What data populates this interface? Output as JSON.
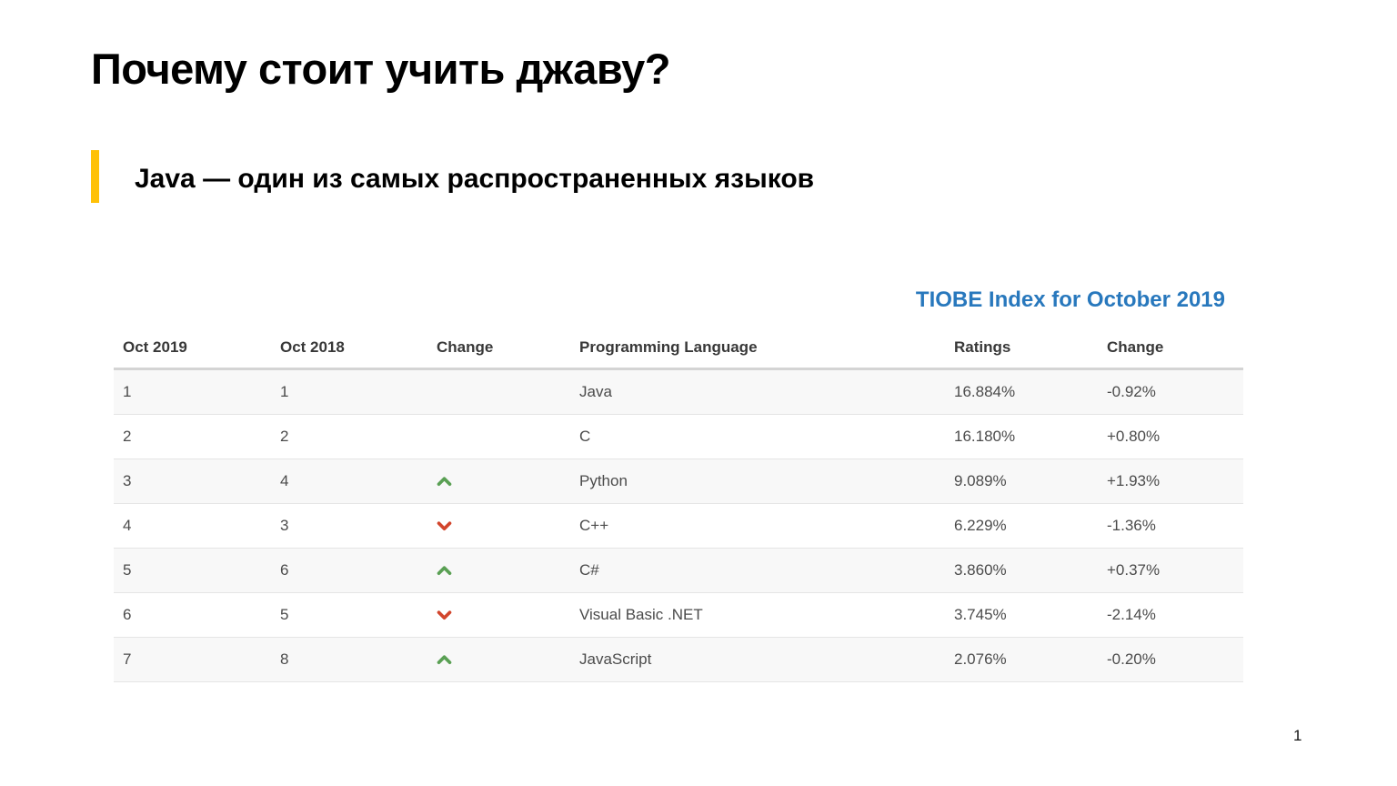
{
  "slide": {
    "title": "Почему стоит учить джаву?",
    "subtitle": "Java — один из самых распространенных языков",
    "page_number": "1"
  },
  "tiobe": {
    "title": "TIOBE Index for October 2019",
    "columns": {
      "oct2019": "Oct 2019",
      "oct2018": "Oct 2018",
      "change_arrow": "Change",
      "language": "Programming Language",
      "ratings": "Ratings",
      "change": "Change"
    },
    "rows": [
      {
        "oct2019": "1",
        "oct2018": "1",
        "direction": "none",
        "language": "Java",
        "rating": "16.884%",
        "change": "-0.92%"
      },
      {
        "oct2019": "2",
        "oct2018": "2",
        "direction": "none",
        "language": "C",
        "rating": "16.180%",
        "change": "+0.80%"
      },
      {
        "oct2019": "3",
        "oct2018": "4",
        "direction": "up",
        "language": "Python",
        "rating": "9.089%",
        "change": "+1.93%"
      },
      {
        "oct2019": "4",
        "oct2018": "3",
        "direction": "down",
        "language": "C++",
        "rating": "6.229%",
        "change": "-1.36%"
      },
      {
        "oct2019": "5",
        "oct2018": "6",
        "direction": "up",
        "language": "C#",
        "rating": "3.860%",
        "change": "+0.37%"
      },
      {
        "oct2019": "6",
        "oct2018": "5",
        "direction": "down",
        "language": "Visual Basic .NET",
        "rating": "3.745%",
        "change": "-2.14%"
      },
      {
        "oct2019": "7",
        "oct2018": "8",
        "direction": "up",
        "language": "JavaScript",
        "rating": "2.076%",
        "change": "-0.20%"
      }
    ]
  },
  "colors": {
    "accent_bar_yellow": "#FFC107",
    "tiobe_title_blue": "#2878BD",
    "arrow_up_green": "#5AA054",
    "arrow_down_red": "#D2452C"
  }
}
